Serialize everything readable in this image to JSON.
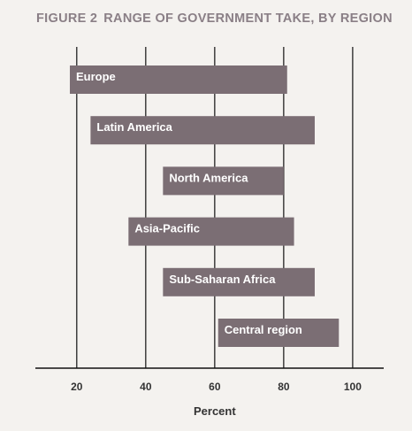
{
  "figure": {
    "number_label": "FIGURE 2",
    "title": "RANGE OF GOVERNMENT TAKE, BY REGION"
  },
  "colors": {
    "background": "#f4f2ef",
    "bar": "#7b6e74",
    "bar_label": "#ffffff",
    "title": "#8a7f86",
    "axis": "#111111",
    "gridline": "#111111",
    "text": "#333333"
  },
  "chart_data": {
    "type": "bar",
    "orientation": "horizontal",
    "style": "floating-range",
    "title": "FIGURE 2  RANGE OF GOVERNMENT TAKE, BY REGION",
    "categories": [
      "Europe",
      "Latin America",
      "North America",
      "Asia-Pacific",
      "Sub-Saharan Africa",
      "Central region"
    ],
    "ranges": [
      {
        "category": "Europe",
        "low": 18,
        "high": 81
      },
      {
        "category": "Latin America",
        "low": 24,
        "high": 89
      },
      {
        "category": "North America",
        "low": 45,
        "high": 80
      },
      {
        "category": "Asia-Pacific",
        "low": 35,
        "high": 83
      },
      {
        "category": "Sub-Saharan Africa",
        "low": 45,
        "high": 89
      },
      {
        "category": "Central region",
        "low": 61,
        "high": 96
      }
    ],
    "xlabel": "Percent",
    "ylabel": "",
    "xticks": [
      20,
      40,
      60,
      80,
      100
    ],
    "xlim": [
      8,
      109
    ],
    "grid": true,
    "legend": "none"
  }
}
